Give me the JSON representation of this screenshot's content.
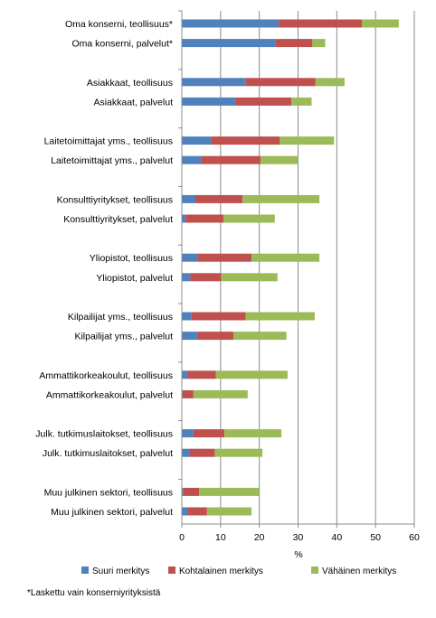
{
  "chart_data": {
    "type": "bar",
    "orientation": "horizontal",
    "stacked": true,
    "xlabel": "%",
    "xlim": [
      0,
      60
    ],
    "xticks": [
      0,
      10,
      20,
      30,
      40,
      50,
      60
    ],
    "grid": true,
    "legend_position": "bottom",
    "colors": [
      "#4f81bd",
      "#c0504d",
      "#9bbb59"
    ],
    "groups": [
      [
        "Oma konserni, teollisuus*",
        "Oma konserni, palvelut*"
      ],
      [
        "Asiakkaat, teollisuus",
        "Asiakkaat, palvelut"
      ],
      [
        "Laitetoimittajat  yms., teollisuus",
        "Laitetoimittajat  yms., palvelut"
      ],
      [
        "Konsulttiyritykset, teollisuus",
        "Konsulttiyritykset, palvelut"
      ],
      [
        "Yliopistot, teollisuus",
        "Yliopistot, palvelut"
      ],
      [
        "Kilpailijat yms., teollisuus",
        "Kilpailijat yms., palvelut"
      ],
      [
        "Ammattikorkeakoulut, teollisuus",
        "Ammattikorkeakoulut, palvelut"
      ],
      [
        "Julk. tutkimuslaitokset, teollisuus",
        "Julk. tutkimuslaitokset,  palvelut"
      ],
      [
        "Muu julkinen sektori, teollisuus",
        "Muu julkinen sektori, palvelut"
      ]
    ],
    "series": [
      {
        "name": "Suuri merkitys",
        "values": [
          [
            25,
            24.2
          ],
          [
            16.5,
            13.8
          ],
          [
            7.5,
            5
          ],
          [
            3.5,
            1
          ],
          [
            4,
            2.2
          ],
          [
            2.5,
            4
          ],
          [
            1.5,
            0.2
          ],
          [
            3,
            2
          ],
          [
            0.3,
            1.5
          ]
        ]
      },
      {
        "name": "Kohtalainen merkitys",
        "values": [
          [
            21.5,
            9.5
          ],
          [
            18,
            14.5
          ],
          [
            17.8,
            15.3
          ],
          [
            12.2,
            9.8
          ],
          [
            14,
            8
          ],
          [
            14,
            9.3
          ],
          [
            7.3,
            2.8
          ],
          [
            8,
            6.5
          ],
          [
            4.2,
            5
          ]
        ]
      },
      {
        "name": "Vähäinen merkitys",
        "values": [
          [
            9.5,
            3.3
          ],
          [
            7.5,
            5.2
          ],
          [
            14,
            9.7
          ],
          [
            19.8,
            13.2
          ],
          [
            17.5,
            14.5
          ],
          [
            17.8,
            13.7
          ],
          [
            18.5,
            14
          ],
          [
            14.7,
            12.3
          ],
          [
            15.5,
            11.5
          ]
        ]
      }
    ]
  },
  "footnote": "*Laskettu vain konserniyrityksistä"
}
